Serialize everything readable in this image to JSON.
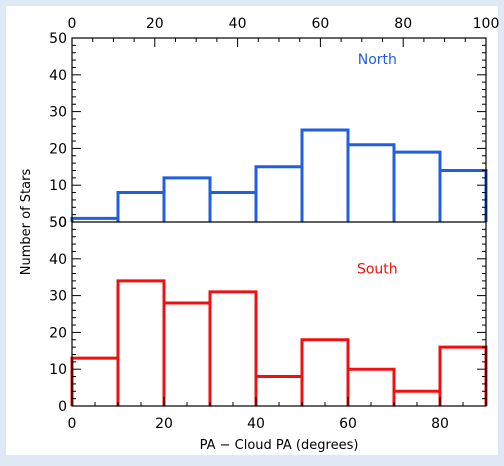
{
  "chart_data": {
    "type": "bar",
    "ylabel": "Number of Stars",
    "xlabel": "PA − Cloud PA (degrees)",
    "bins": [
      0,
      10,
      20,
      30,
      40,
      50,
      60,
      70,
      80,
      90
    ],
    "top_axis": {
      "range": [
        0,
        100
      ],
      "tick_labels": [
        "0",
        "20",
        "40",
        "60",
        "80",
        "100"
      ]
    },
    "bottom_axis": {
      "range": [
        0,
        90
      ],
      "tick_labels": [
        "0",
        "20",
        "40",
        "60",
        "80"
      ]
    },
    "panels": [
      {
        "name": "North",
        "color": "#1f5fe0",
        "ylim": [
          0,
          50
        ],
        "y_tick_labels": [
          "0",
          "10",
          "20",
          "30",
          "40",
          "50"
        ],
        "values": [
          1,
          8,
          12,
          8,
          15,
          25,
          21,
          19,
          14
        ]
      },
      {
        "name": "South",
        "color": "#ee1111",
        "ylim": [
          0,
          50
        ],
        "y_tick_labels": [
          "0",
          "10",
          "20",
          "30",
          "40",
          "50"
        ],
        "values": [
          13,
          34,
          28,
          31,
          8,
          18,
          10,
          4,
          16
        ]
      }
    ],
    "grid": false
  }
}
